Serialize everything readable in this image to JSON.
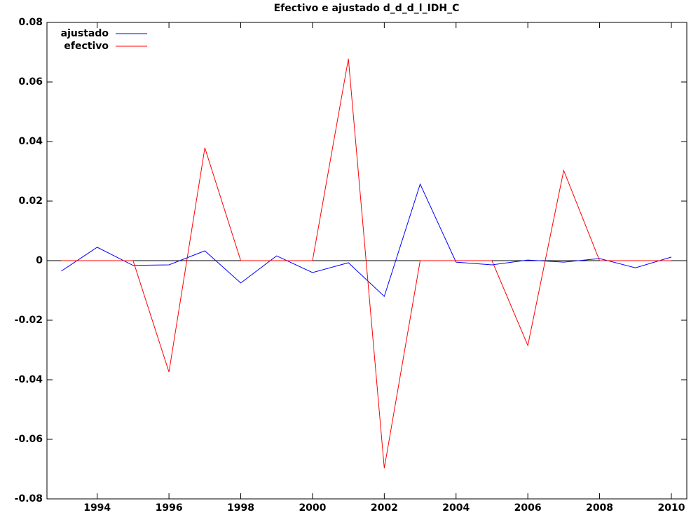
{
  "chart_data": {
    "type": "line",
    "title": "Efectivo e ajustado d_d_d_l_IDH_C",
    "x": [
      1993,
      1994,
      1995,
      1996,
      1997,
      1998,
      1999,
      2000,
      2001,
      2002,
      2003,
      2004,
      2005,
      2006,
      2007,
      2008,
      2009,
      2010
    ],
    "series": [
      {
        "name": "ajustado",
        "color": "#0000ff",
        "values": [
          -0.0035,
          0.0045,
          -0.0016,
          -0.0014,
          0.0033,
          -0.0075,
          0.0016,
          -0.004,
          -0.0007,
          -0.012,
          0.0257,
          -0.0005,
          -0.0014,
          0.0002,
          -0.0005,
          0.0007,
          -0.0024,
          0.0012
        ]
      },
      {
        "name": "efectivo",
        "color": "#ff0000",
        "values": [
          0,
          0,
          0,
          -0.0374,
          0.0379,
          0,
          0,
          0,
          0.0678,
          -0.0697,
          0,
          0,
          0,
          -0.0285,
          0.0303,
          0,
          0,
          0
        ]
      }
    ],
    "xlim": [
      1992.6,
      2010.43
    ],
    "xticks": [
      1994,
      1996,
      1998,
      2000,
      2002,
      2004,
      2006,
      2008,
      2010
    ],
    "ylim": [
      -0.08,
      0.08
    ],
    "yticks": [
      -0.08,
      -0.06,
      -0.04,
      -0.02,
      0,
      0.02,
      0.04,
      0.06,
      0.08
    ],
    "legend": "top-left"
  }
}
